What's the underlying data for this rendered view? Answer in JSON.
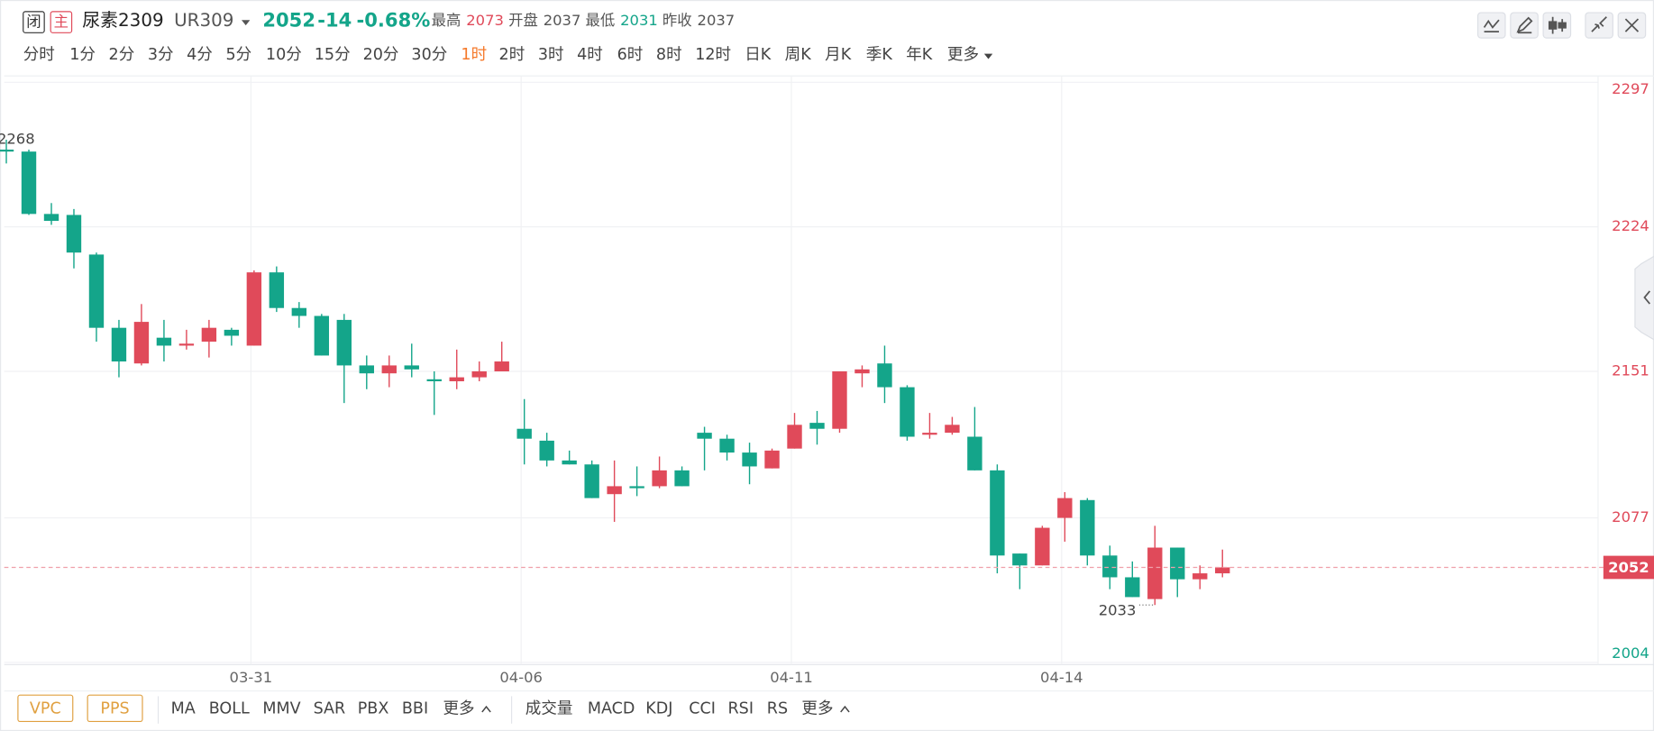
{
  "header": {
    "status_badge": "闭",
    "main_badge": "主",
    "name": "尿素2309",
    "code": "UR309",
    "price": 2052,
    "change": "-14",
    "change_pct": "-0.68%",
    "high_label": "最高",
    "high": 2073,
    "open_label": "开盘",
    "open": 2037,
    "low_label": "最低",
    "low": 2031,
    "prev_close_label": "昨收",
    "prev_close": 2037
  },
  "timeframes": [
    "分时",
    "1分",
    "2分",
    "3分",
    "4分",
    "5分",
    "10分",
    "15分",
    "20分",
    "30分",
    "1时",
    "2时",
    "3时",
    "4时",
    "6时",
    "8时",
    "12时",
    "日K",
    "周K",
    "月K",
    "季K",
    "年K",
    "更多"
  ],
  "active_timeframe": 10,
  "overlay_buttons": [
    "VPC",
    "PPS"
  ],
  "main_indicators": [
    "MA",
    "BOLL",
    "MMV",
    "SAR",
    "PBX",
    "BBI",
    "更多"
  ],
  "sub_indicators": [
    "成交量",
    "MACD",
    "KDJ",
    "CCI",
    "RSI",
    "RS",
    "更多"
  ],
  "chart_data": {
    "type": "candlestick",
    "categories": [
      null,
      null,
      null,
      null,
      null,
      null,
      null,
      null,
      null,
      null,
      null,
      "03-31",
      null,
      null,
      null,
      null,
      null,
      null,
      null,
      null,
      null,
      null,
      null,
      "04-06",
      null,
      null,
      null,
      null,
      null,
      null,
      null,
      null,
      null,
      null,
      null,
      "04-11",
      null,
      null,
      null,
      null,
      null,
      null,
      null,
      null,
      null,
      null,
      null,
      "04-14",
      null,
      null,
      null,
      null,
      null,
      null,
      null
    ],
    "open": [
      2263,
      2262,
      2230.5,
      2230,
      2210,
      2173,
      2155,
      2168,
      2164,
      2166,
      2172,
      2164,
      2201,
      2183,
      2179,
      2177,
      2154,
      2150,
      2154,
      2147,
      2146,
      2148,
      2151,
      2122,
      2116,
      2106,
      2104,
      2089,
      2093,
      2093,
      2101,
      2120,
      2117,
      2110,
      2102,
      2112,
      2125,
      2122,
      2150,
      2155,
      2143,
      2119,
      2120,
      2118,
      2101,
      2059,
      2053,
      2077,
      2086,
      2058,
      2047,
      2036,
      2062,
      2046,
      2049
    ],
    "close": [
      2262,
      2230.5,
      2227,
      2211,
      2173,
      2156,
      2176,
      2164,
      2165,
      2173,
      2169,
      2201,
      2183,
      2179,
      2159,
      2154,
      2150,
      2154,
      2152,
      2146,
      2148,
      2151,
      2156,
      2117,
      2106,
      2104,
      2087,
      2093,
      2092,
      2101,
      2093,
      2117,
      2110,
      2103,
      2111,
      2124,
      2122,
      2151,
      2152,
      2143,
      2118,
      2120,
      2124,
      2101,
      2058,
      2053,
      2072,
      2087,
      2058,
      2047,
      2037,
      2062,
      2046,
      2049,
      2052
    ],
    "high": [
      2268,
      2263,
      2236,
      2233,
      2211,
      2177,
      2185,
      2177,
      2172,
      2177,
      2173,
      2202,
      2204,
      2186,
      2180,
      2180,
      2159,
      2159,
      2165,
      2151,
      2162,
      2156,
      2166,
      2137,
      2120,
      2111,
      2106,
      2106,
      2103,
      2108,
      2103,
      2123,
      2119,
      2115,
      2112,
      2130,
      2131,
      2151,
      2154,
      2164,
      2144,
      2130,
      2128,
      2133,
      2104,
      2059,
      2073,
      2090,
      2087,
      2063,
      2055,
      2073,
      2062,
      2053,
      2061
    ],
    "low": [
      2256,
      2230,
      2225,
      2203,
      2166,
      2148,
      2154,
      2156,
      2162,
      2158,
      2164,
      2164,
      2181,
      2173,
      2159,
      2135,
      2142,
      2143,
      2148,
      2129,
      2142,
      2146,
      2151,
      2104,
      2103,
      2104,
      2087,
      2075,
      2088,
      2092,
      2093,
      2101,
      2106,
      2094,
      2102,
      2112,
      2114,
      2120,
      2143,
      2135,
      2116,
      2117,
      2119,
      2101,
      2049,
      2041,
      2053,
      2065,
      2053,
      2041,
      2037,
      2033,
      2037,
      2041,
      2047
    ],
    "up_color": "#e04a5a",
    "down_color": "#14a58a",
    "ylim": [
      2004,
      2297
    ],
    "yticks": [
      2004,
      2077,
      2151,
      2224,
      2297
    ],
    "grid": true,
    "last_price": 2052,
    "annotations": [
      {
        "value": 2268
      },
      {
        "value": 2033
      }
    ]
  }
}
